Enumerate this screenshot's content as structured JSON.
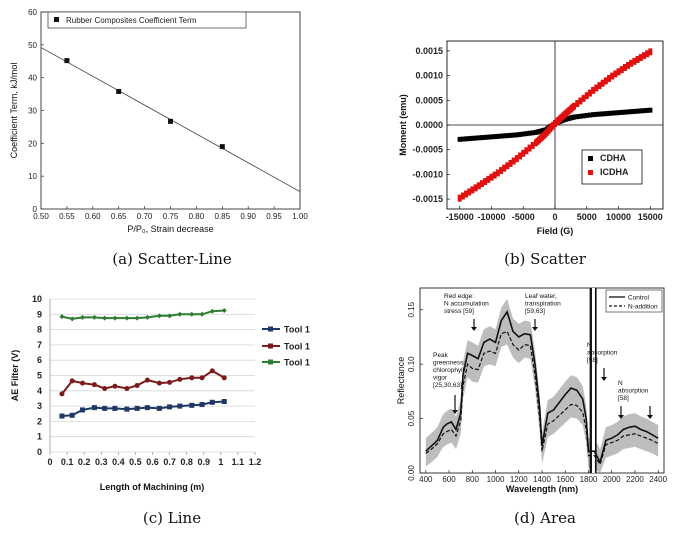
{
  "captions": {
    "a": "(a) Scatter-Line",
    "b": "(b) Scatter",
    "c": "(c) Line",
    "d": "(d) Area"
  },
  "chart_data": [
    {
      "type": "scatter",
      "xlabel": "P/P₀, Strain decrease",
      "ylabel": "Coefficient Term, kJ/mol",
      "xlim": [
        0.5,
        1.0
      ],
      "ylim": [
        0,
        60
      ],
      "xticks": [
        "0.50",
        "0.55",
        "0.60",
        "0.65",
        "0.70",
        "0.75",
        "0.80",
        "0.85",
        "0.90",
        "0.95",
        "1.00"
      ],
      "yticks": [
        "0",
        "10",
        "20",
        "30",
        "40",
        "50",
        "60"
      ],
      "series": [
        {
          "name": "Rubber Composites Coefficient Term",
          "x": [
            0.55,
            0.65,
            0.75,
            0.85
          ],
          "y": [
            45.2,
            35.8,
            26.7,
            19.0
          ]
        }
      ],
      "fit_line": {
        "x": [
          0.5,
          1.0
        ],
        "y": [
          49.2,
          5.3
        ]
      },
      "legend": "top-left"
    },
    {
      "type": "scatter",
      "xlabel": "Field (G)",
      "ylabel": "Moment (emu)",
      "xlim": [
        -17000,
        17000
      ],
      "ylim": [
        -0.0017,
        0.0017
      ],
      "xticks": [
        "-15000",
        "-10000",
        "-5000",
        "0",
        "5000",
        "10000",
        "15000"
      ],
      "yticks": [
        "-0.0015",
        "-0.0010",
        "-0.0005",
        "0.0000",
        "0.0005",
        "0.0010",
        "0.0015"
      ],
      "series": [
        {
          "name": "CDHA",
          "color": "#000000",
          "x": [
            -15000,
            -12000,
            -9000,
            -6000,
            -3000,
            -1500,
            0,
            1500,
            3000,
            6000,
            9000,
            12000,
            15000
          ],
          "y": [
            -0.00029,
            -0.00026,
            -0.00023,
            -0.0002,
            -0.00015,
            -0.0001,
            3e-05,
            0.00011,
            0.00016,
            0.00021,
            0.00024,
            0.00027,
            0.0003
          ]
        },
        {
          "name": "ICDHA",
          "color": "#e01010",
          "x": [
            -15000,
            -12000,
            -9000,
            -6000,
            -3000,
            -1500,
            0,
            1500,
            3000,
            6000,
            9000,
            12000,
            15000
          ],
          "y": [
            -0.00148,
            -0.00123,
            -0.00097,
            -0.00068,
            -0.00036,
            -0.00018,
            3e-05,
            0.00021,
            0.00038,
            0.0007,
            0.00099,
            0.00125,
            0.00148
          ]
        }
      ],
      "legend": "bottom-right"
    },
    {
      "type": "line",
      "xlabel": "Length of Machining (m)",
      "ylabel": "AE Filter (V)",
      "xlim": [
        0,
        1.2
      ],
      "ylim": [
        0,
        10
      ],
      "xticks": [
        "0",
        "0.1",
        "0.2",
        "0.3",
        "0.4",
        "0.5",
        "0.6",
        "0.7",
        "0.8",
        "0.9",
        "1",
        "1.1",
        "1.2"
      ],
      "yticks": [
        "0",
        "1",
        "2",
        "3",
        "4",
        "5",
        "6",
        "7",
        "8",
        "9",
        "10"
      ],
      "x": [
        0.07,
        0.13,
        0.19,
        0.26,
        0.32,
        0.38,
        0.45,
        0.51,
        0.57,
        0.64,
        0.7,
        0.76,
        0.83,
        0.89,
        0.95,
        1.02
      ],
      "series": [
        {
          "name": "Tool 1",
          "color": "#1f3864",
          "values": [
            2.35,
            2.4,
            2.75,
            2.9,
            2.85,
            2.85,
            2.8,
            2.85,
            2.9,
            2.85,
            2.95,
            3.0,
            3.05,
            3.1,
            3.25,
            3.3
          ]
        },
        {
          "name": "Tool 1",
          "color": "#7b1a1a",
          "values": [
            3.8,
            4.65,
            4.5,
            4.4,
            4.15,
            4.3,
            4.15,
            4.35,
            4.7,
            4.5,
            4.55,
            4.75,
            4.85,
            4.85,
            5.3,
            4.85
          ]
        },
        {
          "name": "Tool 1",
          "color": "#2e7d32",
          "values": [
            8.85,
            8.7,
            8.8,
            8.8,
            8.75,
            8.75,
            8.75,
            8.75,
            8.8,
            8.9,
            8.9,
            9.0,
            9.0,
            9.0,
            9.2,
            9.25
          ]
        }
      ],
      "legend": "right"
    },
    {
      "type": "area",
      "xlabel": "Wavelength (nm)",
      "ylabel": "Reflectance",
      "xlim": [
        350,
        2450
      ],
      "ylim": [
        0,
        0.17
      ],
      "xticks": [
        "400",
        "600",
        "800",
        "1000",
        "1200",
        "1400",
        "1600",
        "1800",
        "2000",
        "2200",
        "2400"
      ],
      "yticks": [
        "0.00",
        "0.05",
        "0.10",
        "0.15"
      ],
      "series": [
        {
          "name": "Control",
          "style": "solid",
          "x": [
            400,
            450,
            500,
            550,
            580,
            620,
            660,
            700,
            720,
            760,
            800,
            850,
            900,
            950,
            1000,
            1050,
            1100,
            1150,
            1200,
            1250,
            1300,
            1340,
            1380,
            1400,
            1450,
            1500,
            1550,
            1600,
            1650,
            1700,
            1750,
            1780,
            1800,
            1850,
            1900,
            1950,
            2000,
            2050,
            2100,
            2150,
            2200,
            2250,
            2300,
            2350,
            2400
          ],
          "values": [
            0.02,
            0.025,
            0.03,
            0.042,
            0.045,
            0.047,
            0.04,
            0.055,
            0.09,
            0.11,
            0.108,
            0.105,
            0.12,
            0.123,
            0.12,
            0.14,
            0.148,
            0.13,
            0.125,
            0.128,
            0.127,
            0.1,
            0.06,
            0.025,
            0.055,
            0.058,
            0.065,
            0.072,
            0.078,
            0.076,
            0.068,
            0.05,
            0.02,
            0.02,
            0.01,
            0.03,
            0.032,
            0.035,
            0.04,
            0.042,
            0.043,
            0.04,
            0.038,
            0.035,
            0.032
          ]
        },
        {
          "name": "N-addition",
          "style": "dashed",
          "x": [
            400,
            450,
            500,
            550,
            580,
            620,
            660,
            700,
            720,
            760,
            800,
            850,
            900,
            950,
            1000,
            1050,
            1100,
            1150,
            1200,
            1250,
            1300,
            1340,
            1380,
            1400,
            1450,
            1500,
            1550,
            1600,
            1650,
            1700,
            1750,
            1780,
            1800,
            1850,
            1900,
            1950,
            2000,
            2050,
            2100,
            2150,
            2200,
            2250,
            2300,
            2350,
            2400
          ],
          "values": [
            0.018,
            0.022,
            0.027,
            0.036,
            0.038,
            0.04,
            0.034,
            0.048,
            0.08,
            0.1,
            0.096,
            0.095,
            0.11,
            0.112,
            0.11,
            0.128,
            0.13,
            0.118,
            0.113,
            0.118,
            0.117,
            0.09,
            0.05,
            0.02,
            0.045,
            0.048,
            0.053,
            0.058,
            0.063,
            0.062,
            0.056,
            0.04,
            0.016,
            0.016,
            0.008,
            0.026,
            0.028,
            0.03,
            0.034,
            0.035,
            0.036,
            0.034,
            0.032,
            0.03,
            0.027
          ]
        }
      ],
      "annotations": [
        {
          "text": [
            "Peak",
            "greenness:",
            "chlorophyll",
            "vigor",
            "[25,30,63]"
          ],
          "x": 580
        },
        {
          "text": [
            "Red edge:",
            "N accumulation",
            "stress [59]"
          ],
          "x": 720
        },
        {
          "text": [
            "Leaf water,",
            "transpiration",
            "[59,63]"
          ],
          "x": 1300
        },
        {
          "text": [
            "N",
            "absorption",
            "[58]"
          ],
          "x": 1680
        },
        {
          "text": [
            "N",
            "absorption",
            "[58]"
          ],
          "x": 2150
        }
      ],
      "legend": "top-right"
    }
  ]
}
